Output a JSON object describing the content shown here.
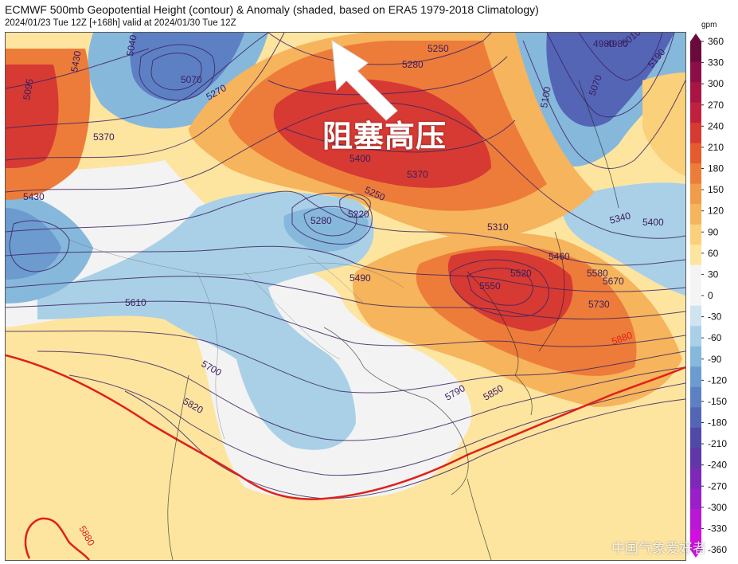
{
  "title": "ECMWF 500mb Geopotential Height (contour) & Anomaly (shaded, based on ERA5 1979-2018 Climatology)",
  "subtitle": "2024/01/23 Tue 12Z [+168h] valid at 2024/01/30 Tue 12Z",
  "callout": "阻塞高压",
  "watermark": "中国气象爱好者",
  "colorbar": {
    "unit": "gpm",
    "ticks": [
      "360",
      "330",
      "300",
      "270",
      "240",
      "210",
      "180",
      "150",
      "120",
      "90",
      "60",
      "30",
      "0",
      "-30",
      "-60",
      "-90",
      "-120",
      "-150",
      "-180",
      "-210",
      "-240",
      "-270",
      "-300",
      "-330",
      "-360"
    ],
    "colors": [
      "#6a0a3c",
      "#8b0f46",
      "#a81545",
      "#c0213f",
      "#d63a33",
      "#e55a2e",
      "#ed7c3a",
      "#f29b4b",
      "#f6b45c",
      "#fbd07a",
      "#fde5a0",
      "#f4f4f4",
      "#f4f4f4",
      "#cfe3f0",
      "#a9d0e7",
      "#86b8dc",
      "#6c9bd0",
      "#5d80c4",
      "#5465b6",
      "#5049a8",
      "#6136a8",
      "#7d28b8",
      "#9a1fc8",
      "#b818d6",
      "#d010e0"
    ]
  },
  "contour_labels": [
    {
      "text": "4980",
      "color": "#3b1c5e"
    },
    {
      "text": "5040",
      "color": "#3b1c5e"
    },
    {
      "text": "5070",
      "color": "#3b1c5e"
    },
    {
      "text": "5270",
      "color": "#3b1c5e"
    },
    {
      "text": "5430",
      "color": "#3b1c5e"
    },
    {
      "text": "5095",
      "color": "#3b1c5e"
    },
    {
      "text": "5370",
      "color": "#3b1c5e"
    },
    {
      "text": "5250",
      "color": "#3b1c5e"
    },
    {
      "text": "5280",
      "color": "#3b1c5e"
    },
    {
      "text": "5400",
      "color": "#3b1c5e"
    },
    {
      "text": "5370",
      "color": "#3b1c5e"
    },
    {
      "text": "5250",
      "color": "#3b1c5e"
    },
    {
      "text": "5220",
      "color": "#3b1c5e"
    },
    {
      "text": "5280",
      "color": "#3b1c5e"
    },
    {
      "text": "5430",
      "color": "#3b1c5e"
    },
    {
      "text": "5610",
      "color": "#3b1c5e"
    },
    {
      "text": "5490",
      "color": "#3b1c5e"
    },
    {
      "text": "5310",
      "color": "#3b1c5e"
    },
    {
      "text": "5460",
      "color": "#3b1c5e"
    },
    {
      "text": "5520",
      "color": "#3b1c5e"
    },
    {
      "text": "5550",
      "color": "#3b1c5e"
    },
    {
      "text": "5580",
      "color": "#3b1c5e"
    },
    {
      "text": "5670",
      "color": "#3b1c5e"
    },
    {
      "text": "5730",
      "color": "#3b1c5e"
    },
    {
      "text": "5340",
      "color": "#3b1c5e"
    },
    {
      "text": "5400",
      "color": "#3b1c5e"
    },
    {
      "text": "4980",
      "color": "#3b1c5e"
    },
    {
      "text": "5010",
      "color": "#3b1c5e"
    },
    {
      "text": "5100",
      "color": "#3b1c5e"
    },
    {
      "text": "5070",
      "color": "#3b1c5e"
    },
    {
      "text": "5190",
      "color": "#3b1c5e"
    },
    {
      "text": "5700",
      "color": "#3b1c5e"
    },
    {
      "text": "5820",
      "color": "#3b1c5e"
    },
    {
      "text": "5790",
      "color": "#3b1c5e"
    },
    {
      "text": "5850",
      "color": "#3b1c5e"
    },
    {
      "text": "5880",
      "color": "#e0201a"
    },
    {
      "text": "5880",
      "color": "#e0201a"
    }
  ]
}
